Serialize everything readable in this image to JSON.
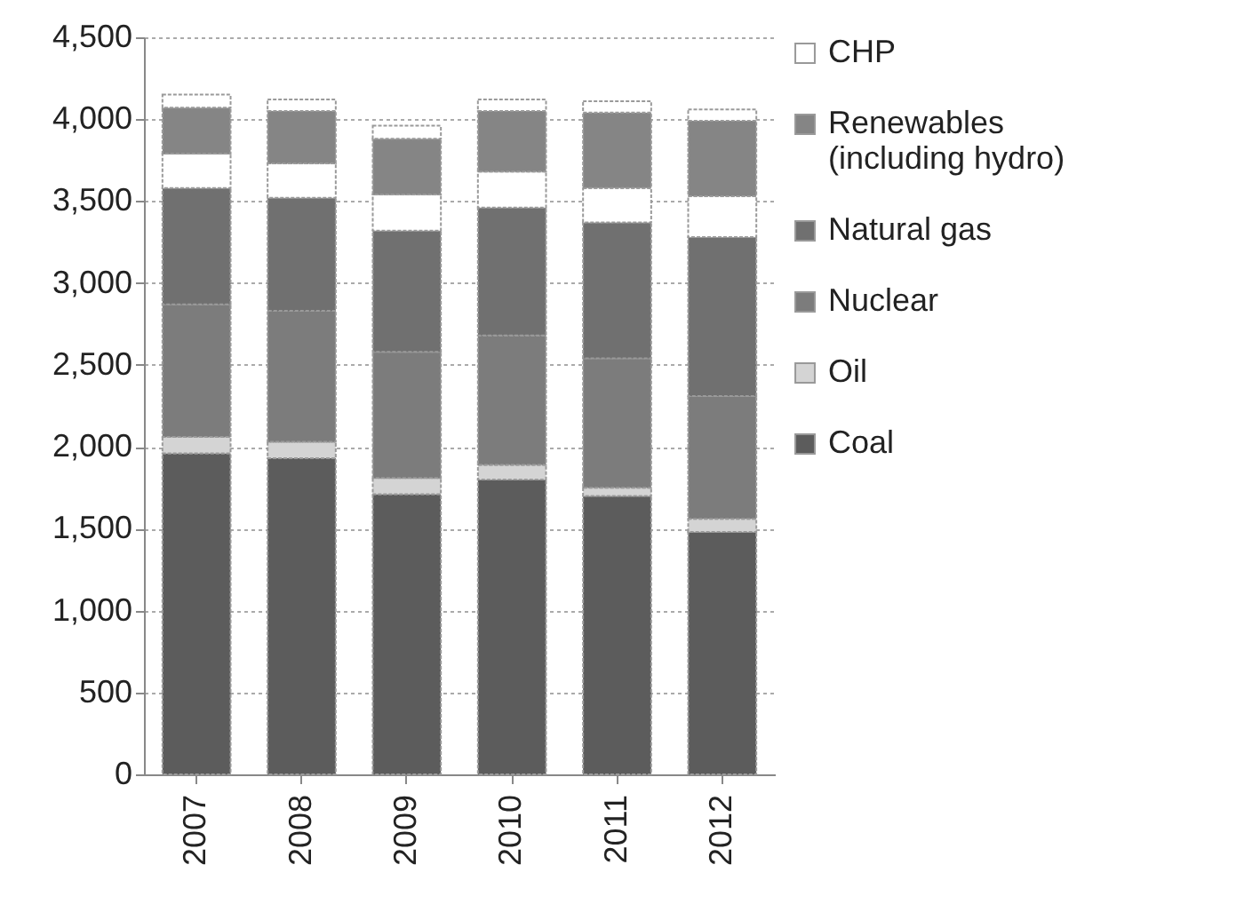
{
  "chart_data": {
    "type": "bar",
    "stacked": true,
    "categories": [
      "2007",
      "2008",
      "2009",
      "2010",
      "2011",
      "2012"
    ],
    "series": [
      {
        "name": "Coal",
        "color": "#5c5c5c",
        "values": [
          1960,
          1930,
          1710,
          1800,
          1700,
          1480
        ]
      },
      {
        "name": "Oil",
        "color": "#d4d4d4",
        "values": [
          100,
          100,
          100,
          90,
          50,
          80
        ]
      },
      {
        "name": "Nuclear",
        "color": "#7c7c7c",
        "values": [
          810,
          800,
          770,
          790,
          790,
          750
        ]
      },
      {
        "name": "Natural gas",
        "color": "#707070",
        "values": [
          710,
          690,
          740,
          780,
          830,
          970
        ]
      },
      {
        "color": "#ffffff",
        "values": [
          210,
          210,
          220,
          220,
          210,
          250
        ]
      },
      {
        "name": "Renewables\n(including hydro)",
        "color": "#858585",
        "values": [
          280,
          320,
          340,
          370,
          460,
          460
        ]
      },
      {
        "name": "CHP",
        "color": "#ffffff",
        "values": [
          80,
          70,
          80,
          70,
          70,
          70
        ]
      }
    ],
    "ylim": [
      0,
      4500
    ],
    "yticks": [
      0,
      {
        "value": 500,
        "label": "500"
      },
      {
        "value": 1000,
        "label": "1,000"
      },
      {
        "value": 1500,
        "label": "1,500"
      },
      {
        "value": 2000,
        "label": "2,000"
      },
      {
        "value": 2500,
        "label": "2,500"
      },
      {
        "value": 3000,
        "label": "3,000"
      },
      {
        "value": 3500,
        "label": "3,500"
      },
      {
        "value": 4000,
        "label": "4,000"
      },
      {
        "value": 4500,
        "label": "4,500"
      }
    ],
    "grid": "y",
    "legend": "right"
  }
}
